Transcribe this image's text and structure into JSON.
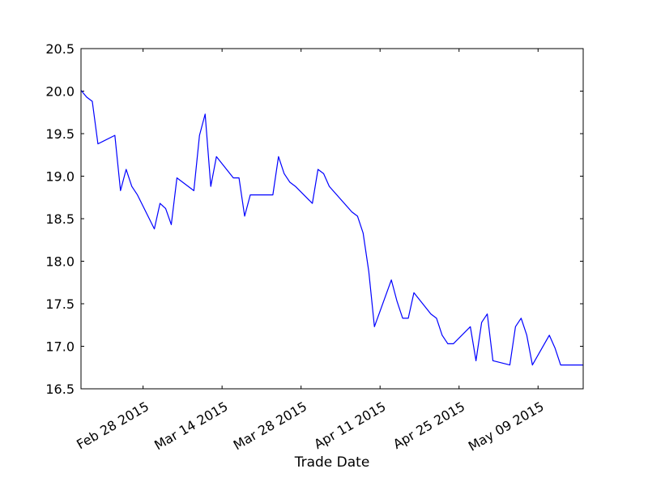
{
  "chart_data": {
    "type": "line",
    "title": "",
    "xlabel": "Trade Date",
    "ylabel": "",
    "xlim": [
      "2015-02-17",
      "2015-05-17"
    ],
    "ylim": [
      16.5,
      20.5
    ],
    "grid": false,
    "legend": "none",
    "line_color": "#0000ff",
    "yticks": [
      16.5,
      17.0,
      17.5,
      18.0,
      18.5,
      19.0,
      19.5,
      20.0,
      20.5
    ],
    "ytick_labels": [
      "16.5",
      "17.0",
      "17.5",
      "18.0",
      "18.5",
      "19.0",
      "19.5",
      "20.0",
      "20.5"
    ],
    "xticks": [
      "2015-02-28",
      "2015-03-14",
      "2015-03-28",
      "2015-04-11",
      "2015-04-25",
      "2015-05-09"
    ],
    "xtick_labels": [
      "Feb 28 2015",
      "Mar 14 2015",
      "Mar 28 2015",
      "Apr 11 2015",
      "Apr 25 2015",
      "May 09 2015"
    ],
    "series": [
      {
        "x": [
          "2015-02-17",
          "2015-02-18",
          "2015-02-19",
          "2015-02-20",
          "2015-02-23",
          "2015-02-24",
          "2015-02-25",
          "2015-02-26",
          "2015-02-27",
          "2015-03-02",
          "2015-03-03",
          "2015-03-04",
          "2015-03-05",
          "2015-03-06",
          "2015-03-09",
          "2015-03-10",
          "2015-03-11",
          "2015-03-12",
          "2015-03-13",
          "2015-03-16",
          "2015-03-17",
          "2015-03-18",
          "2015-03-19",
          "2015-03-20",
          "2015-03-23",
          "2015-03-24",
          "2015-03-25",
          "2015-03-26",
          "2015-03-27",
          "2015-03-30",
          "2015-03-31",
          "2015-04-01",
          "2015-04-02",
          "2015-04-06",
          "2015-04-07",
          "2015-04-08",
          "2015-04-09",
          "2015-04-10",
          "2015-04-13",
          "2015-04-14",
          "2015-04-15",
          "2015-04-16",
          "2015-04-17",
          "2015-04-20",
          "2015-04-21",
          "2015-04-22",
          "2015-04-23",
          "2015-04-24",
          "2015-04-27",
          "2015-04-28",
          "2015-04-29",
          "2015-04-30",
          "2015-05-01",
          "2015-05-04",
          "2015-05-05",
          "2015-05-06",
          "2015-05-07",
          "2015-05-08",
          "2015-05-11",
          "2015-05-12",
          "2015-05-13",
          "2015-05-14",
          "2015-05-15",
          "2015-05-18",
          "2015-05-19"
        ],
        "y": [
          20.01,
          19.93,
          19.88,
          19.38,
          19.48,
          18.83,
          19.08,
          18.88,
          18.78,
          18.38,
          18.68,
          18.62,
          18.43,
          18.98,
          18.83,
          19.48,
          19.73,
          18.88,
          19.23,
          18.98,
          18.98,
          18.53,
          18.78,
          18.78,
          18.78,
          19.23,
          19.03,
          18.93,
          18.88,
          18.68,
          19.08,
          19.03,
          18.88,
          18.58,
          18.53,
          18.33,
          17.88,
          17.23,
          17.78,
          17.53,
          17.33,
          17.33,
          17.63,
          17.38,
          17.33,
          17.13,
          17.03,
          17.03,
          17.23,
          16.83,
          17.28,
          17.38,
          16.83,
          16.78,
          17.23,
          17.33,
          17.13,
          16.78,
          17.13,
          16.98,
          16.78,
          16.78,
          16.78,
          16.78,
          16.78
        ]
      }
    ]
  }
}
